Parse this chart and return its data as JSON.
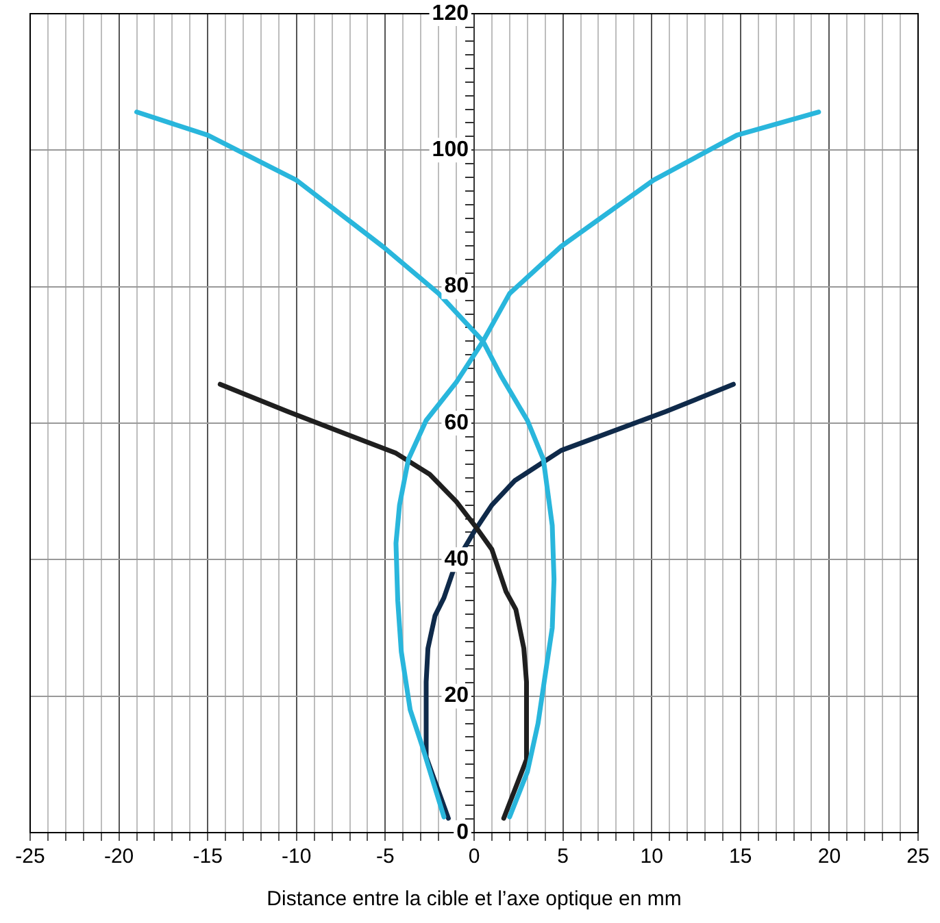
{
  "chart_data": {
    "type": "line",
    "xlabel": "Distance entre la cible et l’axe optique en mm",
    "xlim": [
      -25,
      25
    ],
    "xticks": [
      -25,
      {
        "value": -24,
        "label": null
      },
      {
        "value": -23,
        "label": null
      },
      {
        "value": -22,
        "label": null
      },
      {
        "value": -21,
        "label": null
      },
      -20,
      {
        "value": -19,
        "label": null
      },
      {
        "value": -18,
        "label": null
      },
      {
        "value": -17,
        "label": null
      },
      {
        "value": -16,
        "label": null
      },
      -15,
      {
        "value": -14,
        "label": null
      },
      {
        "value": -13,
        "label": null
      },
      {
        "value": -12,
        "label": null
      },
      {
        "value": -11,
        "label": null
      },
      -10,
      {
        "value": -9,
        "label": null
      },
      {
        "value": -8,
        "label": null
      },
      {
        "value": -7,
        "label": null
      },
      {
        "value": -6,
        "label": null
      },
      -5,
      {
        "value": -4,
        "label": null
      },
      {
        "value": -3,
        "label": null
      },
      {
        "value": -2,
        "label": null
      },
      {
        "value": -1,
        "label": null
      },
      0,
      {
        "value": 1,
        "label": null
      },
      {
        "value": 2,
        "label": null
      },
      {
        "value": 3,
        "label": null
      },
      {
        "value": 4,
        "label": null
      },
      5,
      {
        "value": 6,
        "label": null
      },
      {
        "value": 7,
        "label": null
      },
      {
        "value": 8,
        "label": null
      },
      {
        "value": 9,
        "label": null
      },
      10,
      {
        "value": 11,
        "label": null
      },
      {
        "value": 12,
        "label": null
      },
      {
        "value": 13,
        "label": null
      },
      {
        "value": 14,
        "label": null
      },
      15,
      {
        "value": 16,
        "label": null
      },
      {
        "value": 17,
        "label": null
      },
      {
        "value": 18,
        "label": null
      },
      {
        "value": 19,
        "label": null
      },
      20,
      {
        "value": 21,
        "label": null
      },
      {
        "value": 22,
        "label": null
      },
      {
        "value": 23,
        "label": null
      },
      {
        "value": 24,
        "label": null
      },
      25
    ],
    "ylim": [
      0,
      120
    ],
    "yticks": [
      0,
      {
        "value": 2,
        "label": null
      },
      {
        "value": 4,
        "label": null
      },
      {
        "value": 6,
        "label": null
      },
      {
        "value": 8,
        "label": null
      },
      {
        "value": 10,
        "label": null
      },
      {
        "value": 12,
        "label": null
      },
      {
        "value": 14,
        "label": null
      },
      {
        "value": 16,
        "label": null
      },
      {
        "value": 18,
        "label": null
      },
      20,
      {
        "value": 22,
        "label": null
      },
      {
        "value": 24,
        "label": null
      },
      {
        "value": 26,
        "label": null
      },
      {
        "value": 28,
        "label": null
      },
      {
        "value": 30,
        "label": null
      },
      {
        "value": 32,
        "label": null
      },
      {
        "value": 34,
        "label": null
      },
      {
        "value": 36,
        "label": null
      },
      {
        "value": 38,
        "label": null
      },
      40,
      {
        "value": 42,
        "label": null
      },
      {
        "value": 44,
        "label": null
      },
      {
        "value": 46,
        "label": null
      },
      {
        "value": 48,
        "label": null
      },
      {
        "value": 50,
        "label": null
      },
      {
        "value": 52,
        "label": null
      },
      {
        "value": 54,
        "label": null
      },
      {
        "value": 56,
        "label": null
      },
      {
        "value": 58,
        "label": null
      },
      60,
      {
        "value": 62,
        "label": null
      },
      {
        "value": 64,
        "label": null
      },
      {
        "value": 66,
        "label": null
      },
      {
        "value": 68,
        "label": null
      },
      {
        "value": 70,
        "label": null
      },
      {
        "value": 72,
        "label": null
      },
      {
        "value": 74,
        "label": null
      },
      {
        "value": 76,
        "label": null
      },
      {
        "value": 78,
        "label": null
      },
      80,
      {
        "value": 82,
        "label": null
      },
      {
        "value": 84,
        "label": null
      },
      {
        "value": 86,
        "label": null
      },
      {
        "value": 88,
        "label": null
      },
      {
        "value": 90,
        "label": null
      },
      {
        "value": 92,
        "label": null
      },
      {
        "value": 94,
        "label": null
      },
      {
        "value": 96,
        "label": null
      },
      {
        "value": 98,
        "label": null
      },
      100,
      {
        "value": 102,
        "label": null
      },
      {
        "value": 104,
        "label": null
      },
      {
        "value": 106,
        "label": null
      },
      {
        "value": 108,
        "label": null
      },
      {
        "value": 110,
        "label": null
      },
      {
        "value": 112,
        "label": null
      },
      {
        "value": 114,
        "label": null
      },
      {
        "value": 116,
        "label": null
      },
      {
        "value": 118,
        "label": null
      },
      120
    ],
    "grid": true,
    "legend": false,
    "marker": "none",
    "line_style": "solid",
    "series": [
      {
        "color": "#29b6dc",
        "x": [
          -19.0,
          -15,
          -10,
          -5.1,
          -2,
          0.5,
          1.5,
          3.0,
          3.9,
          4.4,
          4.5,
          4.4,
          4.1,
          3.6,
          3.0,
          2.0
        ],
        "values": [
          105.6,
          102.2,
          95.6,
          85.8,
          79,
          72,
          67,
          60.4,
          54.7,
          45,
          37.1,
          30,
          24.8,
          16,
          8.9,
          2.3
        ]
      },
      {
        "color": "#29b6dc",
        "x": [
          19.4,
          14.8,
          10.1,
          4.9,
          2,
          0.5,
          -1,
          -2.7,
          -3.7,
          -4.2,
          -4.4,
          -4.3,
          -4.1,
          -3.6,
          -2.9,
          -1.7
        ],
        "values": [
          105.6,
          102.2,
          95.6,
          85.9,
          79,
          72,
          66,
          60.4,
          54.7,
          48,
          42.4,
          34,
          26.5,
          18,
          12.5,
          2.3
        ]
      },
      {
        "color": "#1f1f1f",
        "x": [
          -14.3,
          -10.5,
          -4.4,
          -2.5,
          -1,
          0.15,
          1.0,
          1.8,
          2.35,
          2.8,
          2.95,
          2.95,
          1.67
        ],
        "values": [
          65.7,
          61.7,
          55.6,
          52.5,
          48.5,
          44.6,
          41.5,
          35.3,
          32.7,
          27,
          22.1,
          10.7,
          2.1
        ]
      },
      {
        "color": "#0f2a4a",
        "x": [
          14.6,
          10.8,
          4.9,
          2.3,
          1,
          0,
          -1.0,
          -1.7,
          -2.2,
          -2.6,
          -2.7,
          -2.7,
          -1.45
        ],
        "values": [
          65.7,
          61.7,
          56,
          51.6,
          48,
          44.1,
          39.7,
          34.4,
          31.8,
          27,
          22.1,
          11.1,
          2.1
        ]
      }
    ]
  }
}
